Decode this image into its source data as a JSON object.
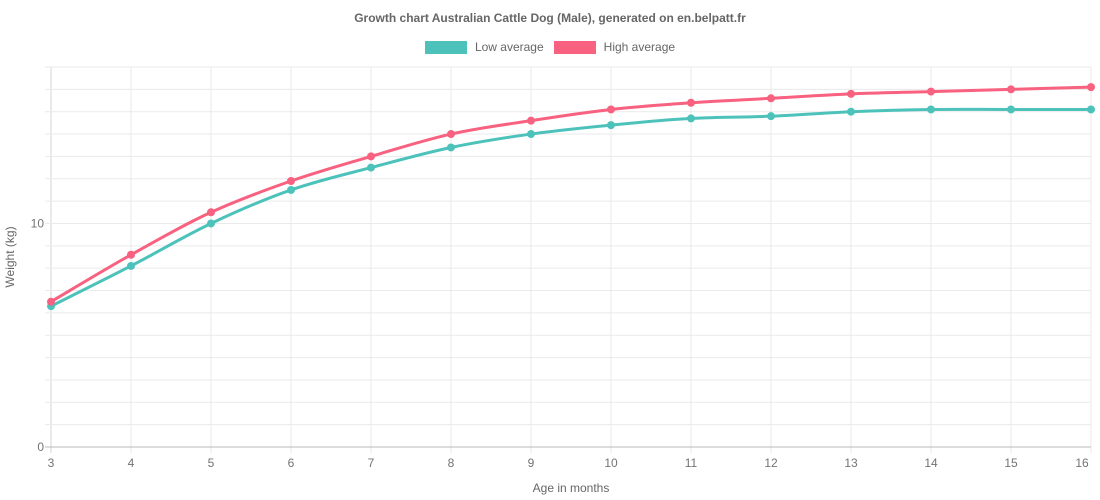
{
  "page": {
    "title": "Growth chart Australian Cattle Dog (Male), generated on en.belpatt.fr"
  },
  "chart_data": {
    "type": "line",
    "title": "Growth chart Australian Cattle Dog (Male), generated on en.belpatt.fr",
    "x": [
      3,
      4,
      5,
      6,
      7,
      8,
      9,
      10,
      11,
      12,
      13,
      14,
      15,
      16
    ],
    "xlabel": "Age in months",
    "ylabel": "Weight (kg)",
    "ylim": [
      0,
      17
    ],
    "y_grid_step": 1,
    "y_labeled_ticks": [
      0,
      10
    ],
    "grid": true,
    "legend_position": "top",
    "line_tension": "smooth",
    "series": [
      {
        "name": "Low average",
        "color": "#4CC2BB",
        "values": [
          6.3,
          8.1,
          10.0,
          11.5,
          12.5,
          13.4,
          14.0,
          14.4,
          14.7,
          14.8,
          15.0,
          15.1,
          15.1,
          15.1
        ]
      },
      {
        "name": "High average",
        "color": "#F8617F",
        "values": [
          6.5,
          8.6,
          10.5,
          11.9,
          13.0,
          14.0,
          14.6,
          15.1,
          15.4,
          15.6,
          15.8,
          15.9,
          16.0,
          16.1
        ]
      }
    ]
  },
  "colors": {
    "background": "#ffffff",
    "grid": "#eaeaea",
    "first_column_grid": "#d5d5d5",
    "axis_line": "#b8b8b8",
    "title_text": "#666666",
    "tick_text": "#737373",
    "axis_title_text": "#666666"
  }
}
